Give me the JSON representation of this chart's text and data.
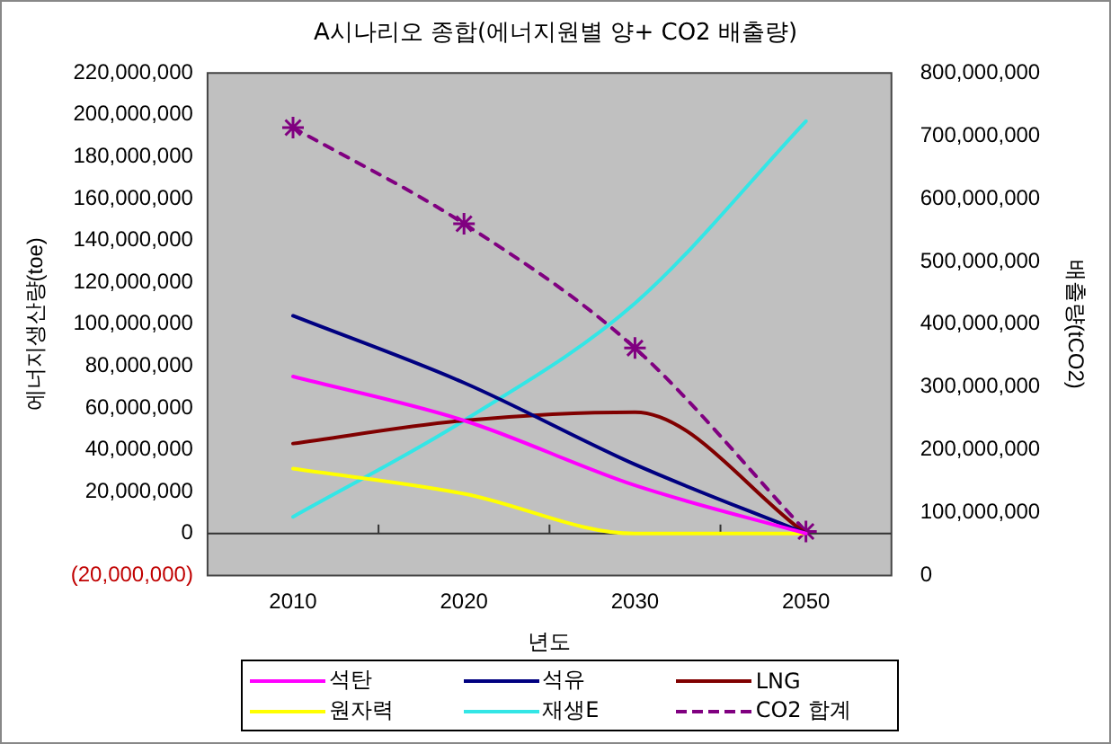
{
  "chart_data": {
    "type": "line",
    "title": "A시나리오 종합(에너지원별 양+ CO2 배출량)",
    "xlabel": "년도",
    "ylabel": "에너지생산량(toe)",
    "y2label": "배출량(tCO2)",
    "categories": [
      "2010",
      "2020",
      "2030",
      "2050"
    ],
    "series": [
      {
        "name": "석탄",
        "color": "#ff00ff",
        "values": [
          75000000,
          54000000,
          23000000,
          0
        ]
      },
      {
        "name": "석유",
        "color": "#000080",
        "values": [
          104000000,
          72000000,
          33000000,
          0
        ]
      },
      {
        "name": "LNG",
        "color": "#800000",
        "values": [
          43000000,
          54000000,
          58000000,
          0
        ]
      },
      {
        "name": "원자력",
        "color": "#ffff00",
        "values": [
          31000000,
          19000000,
          0,
          0
        ]
      },
      {
        "name": "재생E",
        "color": "#33e6e6",
        "values": [
          8000000,
          54000000,
          110000000,
          197000000
        ]
      },
      {
        "name": "CO2 합계",
        "color": "#800080",
        "values": [
          713000000,
          560000000,
          362000000,
          70000000
        ],
        "axis": "y2",
        "marker": "cross",
        "line_style": "dashed"
      }
    ],
    "ylim": [
      -20000000,
      220000000
    ],
    "yticks": [
      {
        "value": -20000000,
        "label": "(20,000,000)"
      },
      0,
      {
        "value": 20000000,
        "label": "20,000,000"
      },
      {
        "value": 40000000,
        "label": "40,000,000"
      },
      {
        "value": 60000000,
        "label": "60,000,000"
      },
      {
        "value": 80000000,
        "label": "80,000,000"
      },
      {
        "value": 100000000,
        "label": "100,000,000"
      },
      {
        "value": 120000000,
        "label": "120,000,000"
      },
      {
        "value": 140000000,
        "label": "140,000,000"
      },
      {
        "value": 160000000,
        "label": "160,000,000"
      },
      {
        "value": 180000000,
        "label": "180,000,000"
      },
      {
        "value": 200000000,
        "label": "200,000,000"
      },
      {
        "value": 220000000,
        "label": "220,000,000"
      }
    ],
    "y2lim": [
      0,
      800000000
    ],
    "y2ticks": [
      0,
      {
        "value": 100000000,
        "label": "100,000,000"
      },
      {
        "value": 200000000,
        "label": "200,000,000"
      },
      {
        "value": 300000000,
        "label": "300,000,000"
      },
      {
        "value": 400000000,
        "label": "400,000,000"
      },
      {
        "value": 500000000,
        "label": "500,000,000"
      },
      {
        "value": 600000000,
        "label": "600,000,000"
      },
      {
        "value": 700000000,
        "label": "700,000,000"
      },
      {
        "value": 800000000,
        "label": "800,000,000"
      }
    ],
    "ref_lines": [
      {
        "axis": "y",
        "value": 0,
        "color": "#333333"
      }
    ],
    "marker": "none",
    "line_style": "solid",
    "grid": false,
    "legend": "bottom"
  }
}
